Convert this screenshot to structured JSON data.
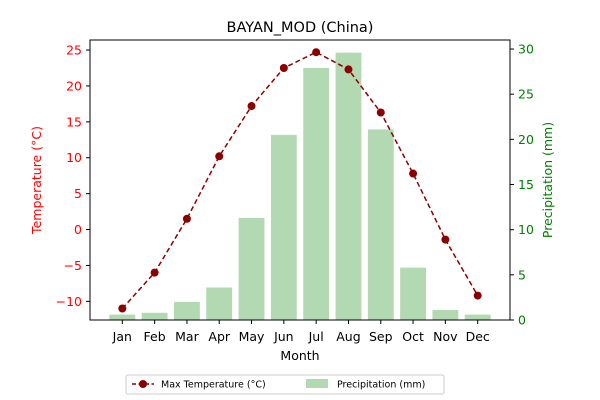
{
  "chart_data": {
    "type": "bar+line",
    "title": "BAYAN_MOD (China)",
    "xlabel": "Month",
    "ylabel_left": "Temperature (°C)",
    "ylabel_right": "Precipitation (mm)",
    "categories": [
      "Jan",
      "Feb",
      "Mar",
      "Apr",
      "May",
      "Jun",
      "Jul",
      "Aug",
      "Sep",
      "Oct",
      "Nov",
      "Dec"
    ],
    "ylim_left": [
      -12.6,
      26.4
    ],
    "ylim_right": [
      0,
      31
    ],
    "yticks_left": [
      -10,
      -5,
      0,
      5,
      10,
      15,
      20,
      25
    ],
    "yticks_right": [
      0,
      5,
      10,
      15,
      20,
      25,
      30
    ],
    "series": [
      {
        "name": "Max Temperature (°C)",
        "type": "line",
        "axis": "left",
        "color": "#8b0000",
        "values": [
          -11.0,
          -6.0,
          1.5,
          10.2,
          17.2,
          22.5,
          24.7,
          22.3,
          16.3,
          7.8,
          -1.4,
          -9.2
        ]
      },
      {
        "name": "Precipitation (mm)",
        "type": "bar",
        "axis": "right",
        "color": "#b2d9b2",
        "values": [
          0.6,
          0.8,
          2.0,
          3.6,
          11.3,
          20.5,
          27.9,
          29.6,
          21.1,
          5.8,
          1.1,
          0.6
        ]
      }
    ],
    "legend_position": "bottom-center",
    "grid": false
  }
}
